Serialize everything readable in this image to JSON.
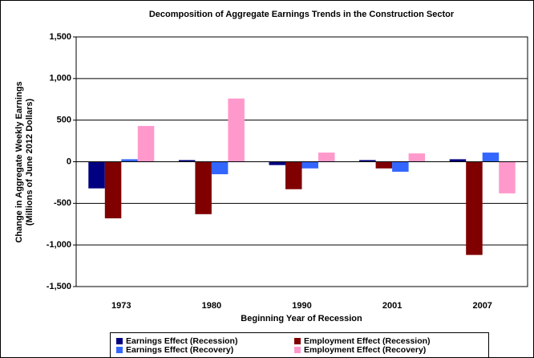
{
  "chart_data": {
    "type": "bar",
    "title": "Decomposition of Aggregate Earnings Trends in the Construction Sector",
    "xlabel": "Beginning Year of Recession",
    "ylabel": [
      "Change in Aggregate Weekly Earnings",
      "(Millions of June 2012 Dollars)"
    ],
    "categories": [
      "1973",
      "1980",
      "1990",
      "2001",
      "2007"
    ],
    "series": [
      {
        "name": "Earnings Effect (Recession)",
        "color": "#000080",
        "values": [
          -320,
          20,
          -40,
          20,
          30
        ]
      },
      {
        "name": "Employment Effect (Recession)",
        "color": "#800000",
        "values": [
          -680,
          -630,
          -330,
          -80,
          -1120
        ]
      },
      {
        "name": "Earnings Effect (Recovery)",
        "color": "#3366ff",
        "values": [
          30,
          -150,
          -80,
          -120,
          110
        ]
      },
      {
        "name": "Employment Effect (Recovery)",
        "color": "#ff99cc",
        "values": [
          430,
          760,
          110,
          100,
          -380
        ]
      }
    ],
    "ylim": [
      -1500,
      1500
    ],
    "yticks": [
      {
        "value": -1500,
        "label": "-1,500"
      },
      {
        "value": -1000,
        "label": "-1,000"
      },
      -500,
      0,
      500,
      {
        "value": 1000,
        "label": "1,000"
      },
      {
        "value": 1500,
        "label": "1,500"
      }
    ],
    "grid": true
  }
}
